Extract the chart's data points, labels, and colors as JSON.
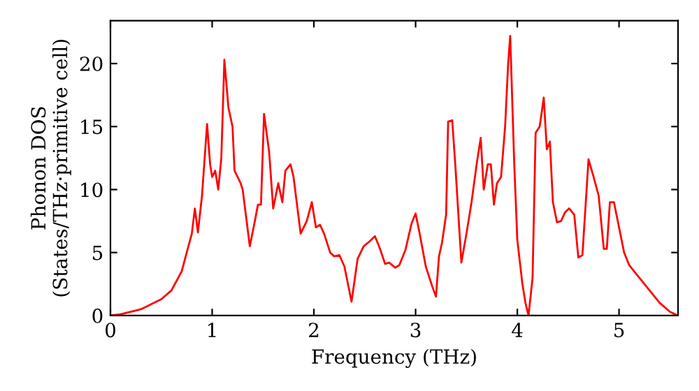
{
  "chart_data": {
    "type": "line",
    "xlabel": "Frequency (THz)",
    "ylabel": "Phonon DOS\n(States/THz·primitive cell)",
    "x": [
      0,
      0.1,
      0.3,
      0.5,
      0.6,
      0.7,
      0.75,
      0.8,
      0.83,
      0.86,
      0.9,
      0.95,
      0.98,
      1.0,
      1.03,
      1.06,
      1.09,
      1.12,
      1.16,
      1.2,
      1.22,
      1.28,
      1.3,
      1.37,
      1.42,
      1.45,
      1.48,
      1.51,
      1.56,
      1.6,
      1.65,
      1.69,
      1.72,
      1.77,
      1.8,
      1.87,
      1.93,
      1.98,
      2.02,
      2.06,
      2.1,
      2.16,
      2.2,
      2.25,
      2.3,
      2.37,
      2.43,
      2.49,
      2.55,
      2.6,
      2.65,
      2.7,
      2.74,
      2.8,
      2.84,
      2.9,
      2.96,
      3.0,
      3.04,
      3.1,
      3.16,
      3.2,
      3.23,
      3.26,
      3.3,
      3.32,
      3.36,
      3.39,
      3.45,
      3.5,
      3.55,
      3.6,
      3.64,
      3.67,
      3.71,
      3.74,
      3.77,
      3.8,
      3.84,
      3.88,
      3.91,
      3.93,
      3.97,
      4.0,
      4.05,
      4.08,
      4.11,
      4.15,
      4.18,
      4.22,
      4.26,
      4.29,
      4.32,
      4.35,
      4.39,
      4.43,
      4.47,
      4.51,
      4.56,
      4.6,
      4.64,
      4.7,
      4.75,
      4.8,
      4.85,
      4.88,
      4.91,
      4.95,
      5.0,
      5.05,
      5.1,
      5.15,
      5.2,
      5.3,
      5.4,
      5.5,
      5.58
    ],
    "series": [
      {
        "color": "#ff0000",
        "values": [
          0,
          0.1,
          0.5,
          1.3,
          2.0,
          3.5,
          5,
          6.5,
          8.5,
          6.6,
          9.5,
          15.2,
          12,
          11,
          11.5,
          10,
          12.5,
          20.3,
          16.5,
          15,
          11.5,
          10.5,
          10,
          5.5,
          7.5,
          8.8,
          8.8,
          16,
          13,
          8.5,
          10.5,
          9,
          11.5,
          12,
          11,
          6.5,
          7.5,
          9,
          7,
          7.2,
          6.5,
          5,
          4.7,
          4.8,
          3.9,
          1.1,
          4.5,
          5.5,
          5.9,
          6.3,
          5.3,
          4.1,
          4.2,
          3.8,
          4,
          5.2,
          7.3,
          8.1,
          6.5,
          3.9,
          2.4,
          1.5,
          4.7,
          5.8,
          8,
          15.4,
          15.5,
          12,
          4.2,
          6.5,
          9,
          12,
          14.1,
          10,
          12,
          12,
          8.8,
          10.5,
          11,
          15,
          20,
          22.2,
          12,
          6,
          2.5,
          1,
          0,
          3,
          14.5,
          15,
          17.3,
          13.2,
          13.8,
          9,
          7.4,
          7.5,
          8.2,
          8.5,
          8,
          4.6,
          4.8,
          12.4,
          11,
          9.5,
          5.3,
          5.3,
          9,
          9,
          7,
          5,
          4,
          3.5,
          3,
          2,
          1,
          0.3,
          0
        ]
      }
    ],
    "xlim": [
      0,
      5.58
    ],
    "ylim": [
      0,
      23.4
    ],
    "xticks": [
      0,
      1,
      2,
      3,
      4,
      5
    ],
    "yticks": [
      0,
      5,
      10,
      15,
      20
    ],
    "grid": false,
    "legend": false,
    "marker": "none",
    "line_style": "solid"
  }
}
